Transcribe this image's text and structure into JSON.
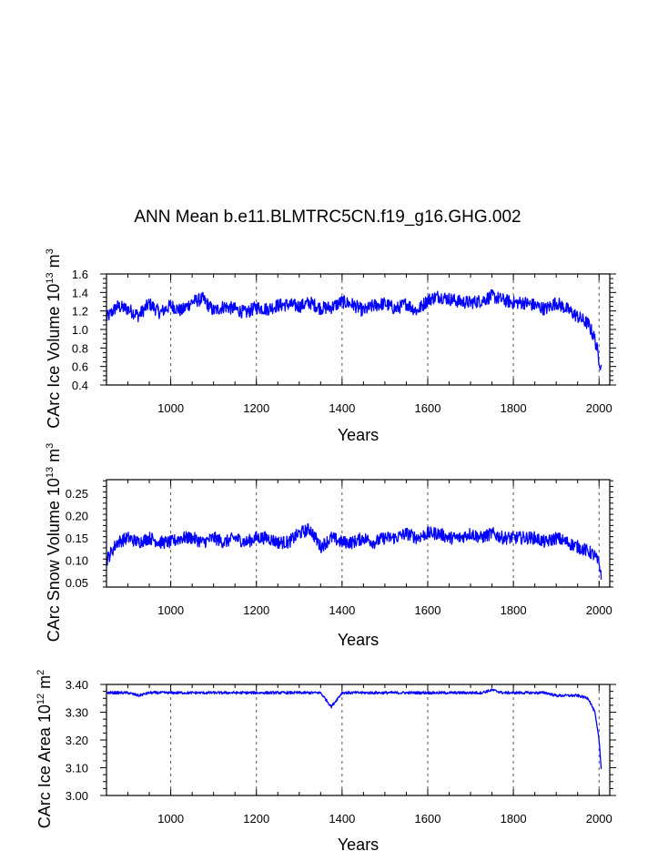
{
  "figure": {
    "title": "ANN Mean b.e11.BLMTRC5CN.f19_g16.GHG.002",
    "line_color": "#0000ff",
    "frame_color": "#000000",
    "grid_color": "#555555"
  },
  "chart_data": [
    {
      "type": "line",
      "title": "",
      "xlabel": "Years",
      "ylabel": "CArc Ice Volume 10",
      "ylabel_sup": "13",
      "ylabel_unit": " m",
      "ylabel_unit_sup": "3",
      "xlim": [
        850,
        2025
      ],
      "ylim": [
        0.4,
        1.6
      ],
      "xticks": [
        1000,
        1200,
        1400,
        1600,
        1800,
        2000
      ],
      "xtick_labels": [
        "1000",
        "1200",
        "1400",
        "1600",
        "1800",
        "2000"
      ],
      "yticks": [
        0.4,
        0.6,
        0.8,
        1.0,
        1.2,
        1.4,
        1.6
      ],
      "ytick_labels": [
        "0.4",
        "0.6",
        "0.8",
        "1.0",
        "1.2",
        "1.4",
        "1.6"
      ],
      "series": [
        {
          "name": "CArc Ice Volume",
          "x": [
            850,
            875,
            900,
            925,
            950,
            975,
            1000,
            1025,
            1050,
            1075,
            1100,
            1125,
            1150,
            1175,
            1200,
            1225,
            1250,
            1275,
            1300,
            1325,
            1350,
            1375,
            1400,
            1425,
            1450,
            1475,
            1500,
            1525,
            1550,
            1575,
            1600,
            1625,
            1650,
            1675,
            1700,
            1725,
            1750,
            1775,
            1800,
            1825,
            1850,
            1875,
            1900,
            1925,
            1950,
            1975,
            1990,
            2000,
            2005
          ],
          "values": [
            1.12,
            1.25,
            1.22,
            1.15,
            1.28,
            1.18,
            1.26,
            1.2,
            1.3,
            1.33,
            1.2,
            1.25,
            1.22,
            1.18,
            1.24,
            1.22,
            1.26,
            1.27,
            1.25,
            1.29,
            1.23,
            1.24,
            1.3,
            1.27,
            1.2,
            1.26,
            1.28,
            1.22,
            1.28,
            1.2,
            1.32,
            1.36,
            1.33,
            1.3,
            1.29,
            1.31,
            1.36,
            1.32,
            1.29,
            1.29,
            1.26,
            1.22,
            1.29,
            1.22,
            1.14,
            1.06,
            0.9,
            0.68,
            0.58
          ]
        }
      ]
    },
    {
      "type": "line",
      "title": "",
      "xlabel": "Years",
      "ylabel": "CArc Snow Volume 10",
      "ylabel_sup": "13",
      "ylabel_unit": " m",
      "ylabel_unit_sup": "3",
      "xlim": [
        850,
        2025
      ],
      "ylim": [
        0.04,
        0.28
      ],
      "xticks": [
        1000,
        1200,
        1400,
        1600,
        1800,
        2000
      ],
      "xtick_labels": [
        "1000",
        "1200",
        "1400",
        "1600",
        "1800",
        "2000"
      ],
      "yticks": [
        0.05,
        0.1,
        0.15,
        0.2,
        0.25
      ],
      "ytick_labels": [
        "0.05",
        "0.10",
        "0.15",
        "0.20",
        "0.25"
      ],
      "series": [
        {
          "name": "CArc Snow Volume",
          "x": [
            850,
            875,
            900,
            925,
            950,
            975,
            1000,
            1025,
            1050,
            1075,
            1100,
            1125,
            1150,
            1175,
            1200,
            1225,
            1250,
            1275,
            1300,
            1325,
            1350,
            1375,
            1400,
            1425,
            1450,
            1475,
            1500,
            1525,
            1550,
            1575,
            1600,
            1625,
            1650,
            1675,
            1700,
            1725,
            1750,
            1775,
            1800,
            1825,
            1850,
            1875,
            1900,
            1925,
            1950,
            1975,
            1990,
            2000,
            2005
          ],
          "values": [
            0.1,
            0.14,
            0.15,
            0.14,
            0.15,
            0.14,
            0.14,
            0.15,
            0.15,
            0.14,
            0.15,
            0.14,
            0.15,
            0.14,
            0.15,
            0.15,
            0.14,
            0.14,
            0.16,
            0.17,
            0.13,
            0.15,
            0.14,
            0.14,
            0.15,
            0.14,
            0.15,
            0.15,
            0.16,
            0.15,
            0.16,
            0.16,
            0.15,
            0.15,
            0.16,
            0.15,
            0.16,
            0.15,
            0.15,
            0.15,
            0.15,
            0.14,
            0.15,
            0.14,
            0.13,
            0.12,
            0.11,
            0.09,
            0.07
          ]
        }
      ]
    },
    {
      "type": "line",
      "title": "",
      "xlabel": "Years",
      "ylabel": "CArc Ice Area 10",
      "ylabel_sup": "12",
      "ylabel_unit": " m",
      "ylabel_unit_sup": "2",
      "xlim": [
        850,
        2025
      ],
      "ylim": [
        3.0,
        3.4
      ],
      "xticks": [
        1000,
        1200,
        1400,
        1600,
        1800,
        2000
      ],
      "xtick_labels": [
        "1000",
        "1200",
        "1400",
        "1600",
        "1800",
        "2000"
      ],
      "yticks": [
        3.0,
        3.1,
        3.2,
        3.3,
        3.4
      ],
      "ytick_labels": [
        "3.00",
        "3.10",
        "3.20",
        "3.30",
        "3.40"
      ],
      "series": [
        {
          "name": "CArc Ice Area",
          "x": [
            850,
            875,
            900,
            925,
            950,
            975,
            1000,
            1025,
            1050,
            1075,
            1100,
            1125,
            1150,
            1175,
            1200,
            1225,
            1250,
            1275,
            1300,
            1325,
            1350,
            1375,
            1400,
            1425,
            1450,
            1475,
            1500,
            1525,
            1550,
            1575,
            1600,
            1625,
            1650,
            1675,
            1700,
            1725,
            1750,
            1775,
            1800,
            1825,
            1850,
            1875,
            1900,
            1925,
            1950,
            1975,
            1990,
            2000,
            2005
          ],
          "values": [
            3.37,
            3.37,
            3.37,
            3.36,
            3.37,
            3.37,
            3.37,
            3.37,
            3.37,
            3.37,
            3.37,
            3.37,
            3.37,
            3.37,
            3.37,
            3.37,
            3.37,
            3.37,
            3.37,
            3.37,
            3.37,
            3.32,
            3.37,
            3.37,
            3.37,
            3.37,
            3.37,
            3.37,
            3.37,
            3.37,
            3.37,
            3.37,
            3.37,
            3.37,
            3.37,
            3.37,
            3.38,
            3.37,
            3.37,
            3.37,
            3.37,
            3.37,
            3.36,
            3.36,
            3.36,
            3.35,
            3.3,
            3.2,
            3.1
          ]
        }
      ]
    }
  ]
}
